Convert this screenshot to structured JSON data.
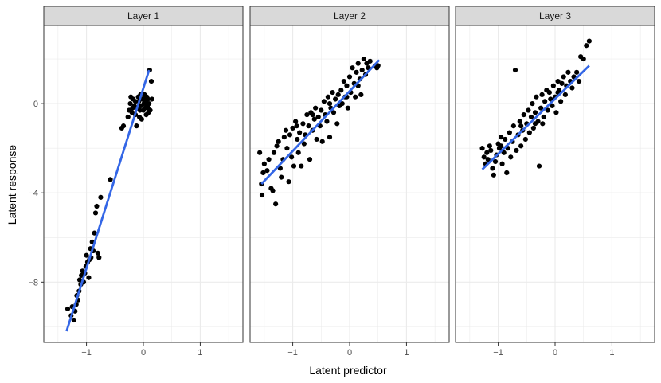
{
  "chart_data": {
    "type": "scatter",
    "xlabel": "Latent predictor",
    "ylabel": "Latent response",
    "xlim": [
      -1.75,
      1.75
    ],
    "ylim": [
      -10.7,
      3.5
    ],
    "x_ticks": [
      -1,
      0,
      1
    ],
    "x_tick_labels": [
      "−1",
      "0",
      "1"
    ],
    "y_ticks": [
      -8,
      -4,
      0
    ],
    "y_tick_labels": [
      "−8",
      "−4",
      "0"
    ],
    "grid": true,
    "colors": {
      "points": "#000000",
      "fit_line": "#3366E6",
      "strip_fill": "#D9D9D9",
      "grid": "#EBEBEB"
    },
    "facets": [
      {
        "label": "Layer 1",
        "fit_line": {
          "x": [
            -1.35,
            0.1
          ],
          "y": [
            -10.2,
            1.5
          ]
        },
        "points": [
          [
            -1.33,
            -9.2
          ],
          [
            -1.27,
            -9.5
          ],
          [
            -1.25,
            -9.1
          ],
          [
            -1.22,
            -9.7
          ],
          [
            -1.2,
            -9.3
          ],
          [
            -1.18,
            -9.0
          ],
          [
            -1.17,
            -8.6
          ],
          [
            -1.15,
            -8.8
          ],
          [
            -1.13,
            -8.4
          ],
          [
            -1.12,
            -7.9
          ],
          [
            -1.1,
            -8.1
          ],
          [
            -1.09,
            -7.7
          ],
          [
            -1.07,
            -7.5
          ],
          [
            -1.05,
            -8.0
          ],
          [
            -1.03,
            -7.6
          ],
          [
            -1.01,
            -7.3
          ],
          [
            -1.0,
            -6.8
          ],
          [
            -0.98,
            -7.1
          ],
          [
            -0.96,
            -7.8
          ],
          [
            -0.95,
            -7.0
          ],
          [
            -0.93,
            -6.5
          ],
          [
            -0.92,
            -6.9
          ],
          [
            -0.9,
            -6.2
          ],
          [
            -0.88,
            -6.6
          ],
          [
            -0.86,
            -5.8
          ],
          [
            -0.84,
            -4.9
          ],
          [
            -0.82,
            -4.6
          ],
          [
            -0.8,
            -6.7
          ],
          [
            -0.78,
            -6.9
          ],
          [
            -0.75,
            -4.2
          ],
          [
            -0.58,
            -3.4
          ],
          [
            -0.38,
            -1.1
          ],
          [
            -0.35,
            -1.0
          ],
          [
            -0.27,
            -0.6
          ],
          [
            -0.25,
            -0.3
          ],
          [
            -0.23,
            0.0
          ],
          [
            -0.2,
            -0.4
          ],
          [
            -0.18,
            0.2
          ],
          [
            -0.16,
            -0.1
          ],
          [
            -0.14,
            -0.5
          ],
          [
            -0.12,
            -1.0
          ],
          [
            -0.11,
            -0.2
          ],
          [
            -0.09,
            0.3
          ],
          [
            -0.08,
            0.1
          ],
          [
            -0.06,
            -0.3
          ],
          [
            -0.05,
            0.4
          ],
          [
            -0.04,
            -0.1
          ],
          [
            -0.03,
            -0.7
          ],
          [
            -0.02,
            0.2
          ],
          [
            0.0,
            -0.3
          ],
          [
            0.01,
            0.0
          ],
          [
            0.02,
            0.4
          ],
          [
            0.03,
            -0.2
          ],
          [
            0.04,
            0.1
          ],
          [
            0.05,
            -0.5
          ],
          [
            0.06,
            0.3
          ],
          [
            0.07,
            -0.1
          ],
          [
            0.08,
            0.2
          ],
          [
            0.09,
            -0.4
          ],
          [
            0.1,
            0.0
          ],
          [
            0.11,
            1.5
          ],
          [
            0.12,
            -0.3
          ],
          [
            0.14,
            1.0
          ],
          [
            0.15,
            0.2
          ],
          [
            -0.22,
            0.3
          ],
          [
            -0.07,
            -0.6
          ],
          [
            0.03,
            0.3
          ],
          [
            -0.14,
            0.1
          ],
          [
            -0.19,
            -0.2
          ],
          [
            0.08,
            -0.2
          ]
        ]
      },
      {
        "label": "Layer 2",
        "fit_line": {
          "x": [
            -1.55,
            0.52
          ],
          "y": [
            -3.6,
            1.95
          ]
        },
        "points": [
          [
            -1.58,
            -2.2
          ],
          [
            -1.55,
            -3.6
          ],
          [
            -1.54,
            -4.1
          ],
          [
            -1.52,
            -3.1
          ],
          [
            -1.5,
            -2.7
          ],
          [
            -1.45,
            -3.0
          ],
          [
            -1.42,
            -2.5
          ],
          [
            -1.38,
            -3.8
          ],
          [
            -1.35,
            -3.9
          ],
          [
            -1.33,
            -2.2
          ],
          [
            -1.3,
            -4.5
          ],
          [
            -1.28,
            -1.9
          ],
          [
            -1.25,
            -1.7
          ],
          [
            -1.22,
            -2.9
          ],
          [
            -1.2,
            -3.3
          ],
          [
            -1.17,
            -2.5
          ],
          [
            -1.15,
            -1.5
          ],
          [
            -1.12,
            -1.2
          ],
          [
            -1.1,
            -2.0
          ],
          [
            -1.07,
            -3.5
          ],
          [
            -1.05,
            -1.4
          ],
          [
            -1.02,
            -2.4
          ],
          [
            -1.0,
            -1.1
          ],
          [
            -0.98,
            -2.8
          ],
          [
            -0.95,
            -0.8
          ],
          [
            -0.92,
            -1.6
          ],
          [
            -0.9,
            -2.2
          ],
          [
            -0.88,
            -1.3
          ],
          [
            -0.85,
            -2.8
          ],
          [
            -0.82,
            -0.9
          ],
          [
            -0.8,
            -1.8
          ],
          [
            -0.78,
            -1.4
          ],
          [
            -0.75,
            -0.5
          ],
          [
            -0.72,
            -1.0
          ],
          [
            -0.7,
            -2.5
          ],
          [
            -0.68,
            -0.4
          ],
          [
            -0.65,
            -1.2
          ],
          [
            -0.62,
            -0.7
          ],
          [
            -0.6,
            -0.2
          ],
          [
            -0.58,
            -1.6
          ],
          [
            -0.55,
            -0.6
          ],
          [
            -0.52,
            -1.0
          ],
          [
            -0.5,
            -0.3
          ],
          [
            -0.48,
            -1.7
          ],
          [
            -0.45,
            0.1
          ],
          [
            -0.43,
            -0.5
          ],
          [
            -0.4,
            -0.8
          ],
          [
            -0.38,
            0.3
          ],
          [
            -0.35,
            -1.5
          ],
          [
            -0.33,
            -0.2
          ],
          [
            -0.3,
            0.5
          ],
          [
            -0.28,
            -0.4
          ],
          [
            -0.25,
            0.2
          ],
          [
            -0.22,
            -0.9
          ],
          [
            -0.2,
            0.4
          ],
          [
            -0.18,
            -0.1
          ],
          [
            -0.15,
            0.6
          ],
          [
            -0.13,
            0.0
          ],
          [
            -0.1,
            1.0
          ],
          [
            -0.08,
            0.3
          ],
          [
            -0.05,
            0.8
          ],
          [
            -0.03,
            -0.2
          ],
          [
            0.0,
            1.2
          ],
          [
            0.02,
            0.5
          ],
          [
            0.05,
            1.6
          ],
          [
            0.08,
            0.9
          ],
          [
            0.1,
            0.3
          ],
          [
            0.12,
            1.4
          ],
          [
            0.15,
            1.8
          ],
          [
            0.18,
            1.1
          ],
          [
            0.2,
            0.4
          ],
          [
            0.22,
            1.5
          ],
          [
            0.25,
            2.0
          ],
          [
            0.28,
            1.3
          ],
          [
            0.3,
            1.8
          ],
          [
            0.33,
            1.6
          ],
          [
            0.36,
            1.9
          ],
          [
            0.45,
            1.7
          ],
          [
            0.48,
            1.6
          ],
          [
            0.5,
            1.7
          ],
          [
            -0.93,
            -1.0
          ],
          [
            -0.65,
            -0.5
          ],
          [
            -0.35,
            0.0
          ],
          [
            -0.05,
            0.3
          ],
          [
            0.15,
            0.8
          ]
        ]
      },
      {
        "label": "Layer 3",
        "fit_line": {
          "x": [
            -1.28,
            0.6
          ],
          "y": [
            -2.95,
            1.7
          ]
        },
        "points": [
          [
            -1.28,
            -2.0
          ],
          [
            -1.25,
            -2.4
          ],
          [
            -1.22,
            -2.7
          ],
          [
            -1.2,
            -2.2
          ],
          [
            -1.18,
            -2.5
          ],
          [
            -1.15,
            -1.9
          ],
          [
            -1.13,
            -2.1
          ],
          [
            -1.1,
            -2.9
          ],
          [
            -1.08,
            -3.2
          ],
          [
            -1.05,
            -2.6
          ],
          [
            -1.03,
            -2.3
          ],
          [
            -1.0,
            -1.8
          ],
          [
            -0.98,
            -2.0
          ],
          [
            -0.95,
            -1.5
          ],
          [
            -0.93,
            -2.7
          ],
          [
            -0.9,
            -2.2
          ],
          [
            -0.88,
            -1.6
          ],
          [
            -0.85,
            -3.1
          ],
          [
            -0.83,
            -2.0
          ],
          [
            -0.8,
            -1.3
          ],
          [
            -0.78,
            -2.4
          ],
          [
            -0.75,
            -1.7
          ],
          [
            -0.73,
            -1.0
          ],
          [
            -0.7,
            1.5
          ],
          [
            -0.68,
            -2.1
          ],
          [
            -0.65,
            -1.4
          ],
          [
            -0.62,
            -0.8
          ],
          [
            -0.6,
            -1.9
          ],
          [
            -0.57,
            -1.2
          ],
          [
            -0.55,
            -0.5
          ],
          [
            -0.52,
            -1.6
          ],
          [
            -0.5,
            -0.9
          ],
          [
            -0.47,
            -0.3
          ],
          [
            -0.45,
            -1.3
          ],
          [
            -0.42,
            -0.6
          ],
          [
            -0.4,
            0.0
          ],
          [
            -0.38,
            -1.1
          ],
          [
            -0.35,
            -0.4
          ],
          [
            -0.33,
            0.3
          ],
          [
            -0.3,
            -0.8
          ],
          [
            -0.28,
            -2.8
          ],
          [
            -0.25,
            -0.2
          ],
          [
            -0.23,
            0.4
          ],
          [
            -0.2,
            -0.6
          ],
          [
            -0.18,
            0.1
          ],
          [
            -0.15,
            0.6
          ],
          [
            -0.13,
            -0.3
          ],
          [
            -0.1,
            0.5
          ],
          [
            -0.08,
            0.2
          ],
          [
            -0.05,
            -0.1
          ],
          [
            -0.03,
            0.8
          ],
          [
            0.0,
            0.3
          ],
          [
            0.02,
            -0.4
          ],
          [
            0.05,
            1.0
          ],
          [
            0.07,
            0.6
          ],
          [
            0.1,
            0.1
          ],
          [
            0.12,
            0.9
          ],
          [
            0.15,
            1.2
          ],
          [
            0.18,
            0.4
          ],
          [
            0.2,
            0.8
          ],
          [
            0.23,
            1.4
          ],
          [
            0.27,
            1.0
          ],
          [
            0.3,
            0.7
          ],
          [
            0.38,
            1.4
          ],
          [
            0.42,
            1.0
          ],
          [
            0.45,
            2.1
          ],
          [
            0.5,
            2.0
          ],
          [
            0.55,
            2.6
          ],
          [
            0.6,
            2.8
          ],
          [
            -0.6,
            -1.0
          ],
          [
            -0.22,
            -0.9
          ],
          [
            0.05,
            0.5
          ],
          [
            -0.35,
            -0.9
          ],
          [
            -0.95,
            -1.9
          ],
          [
            0.33,
            1.2
          ]
        ]
      }
    ]
  }
}
